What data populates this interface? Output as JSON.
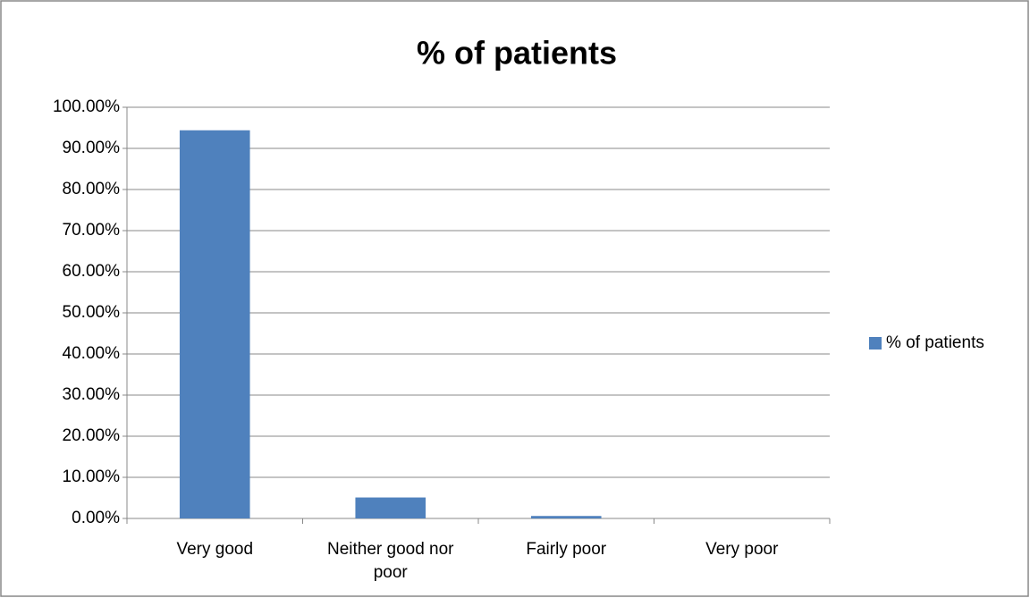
{
  "chart_data": {
    "type": "bar",
    "title": "% of patients",
    "categories": [
      "Very good",
      "Neither good nor poor",
      "Fairly poor",
      "Very poor"
    ],
    "series": [
      {
        "name": "% of patients",
        "color": "#4f81bd",
        "values": [
          94.4,
          5.1,
          0.6,
          0
        ]
      }
    ],
    "ylim": [
      0,
      100
    ],
    "yticks": [
      {
        "value": 0,
        "label": "0.00%"
      },
      {
        "value": 10,
        "label": "10.00%"
      },
      {
        "value": 20,
        "label": "20.00%"
      },
      {
        "value": 30,
        "label": "30.00%"
      },
      {
        "value": 40,
        "label": "40.00%"
      },
      {
        "value": 50,
        "label": "50.00%"
      },
      {
        "value": 60,
        "label": "60.00%"
      },
      {
        "value": 70,
        "label": "70.00%"
      },
      {
        "value": 80,
        "label": "80.00%"
      },
      {
        "value": 90,
        "label": "90.00%"
      },
      {
        "value": 100,
        "label": "100.00%"
      }
    ],
    "grid": true,
    "legend": "right"
  }
}
